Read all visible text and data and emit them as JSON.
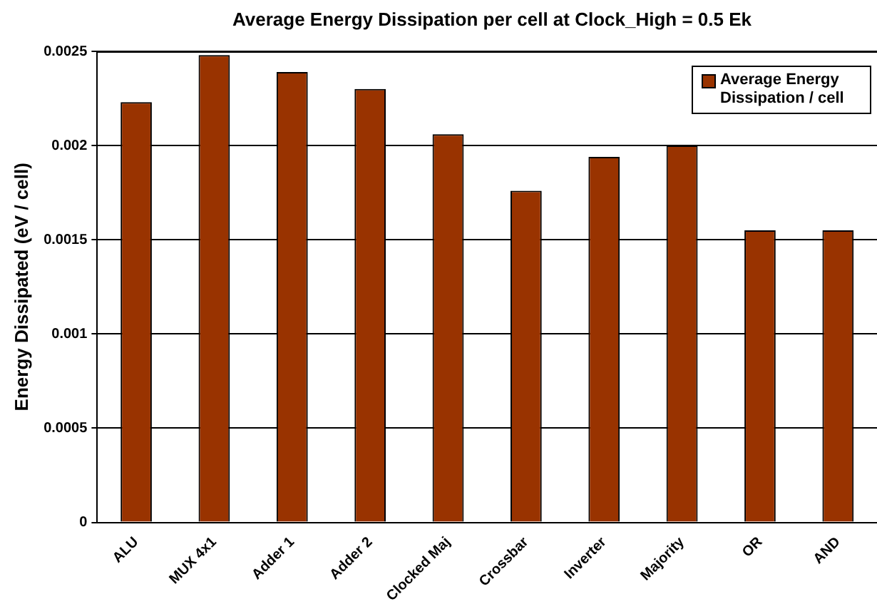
{
  "chart_data": {
    "type": "bar",
    "title": "Average Energy Dissipation per cell at Clock_High = 0.5 Ek",
    "ylabel": "Energy Dissipated (eV / cell)",
    "categories": [
      "ALU",
      "MUX 4x1",
      "Adder 1",
      "Adder 2",
      "Clocked Maj",
      "Crossbar",
      "Inverter",
      "Majority",
      "OR",
      "AND"
    ],
    "series": [
      {
        "name": "Average Energy Dissipation / cell",
        "color": "#993300",
        "values": [
          0.00223,
          0.00248,
          0.00239,
          0.0023,
          0.00206,
          0.00176,
          0.00194,
          0.002,
          0.00155,
          0.00155
        ]
      }
    ],
    "ylim": [
      0,
      0.0025
    ],
    "yticks": [
      0,
      0.0005,
      0.001,
      0.0015,
      0.002,
      0.0025
    ],
    "grid": "y",
    "legend": "top right"
  }
}
